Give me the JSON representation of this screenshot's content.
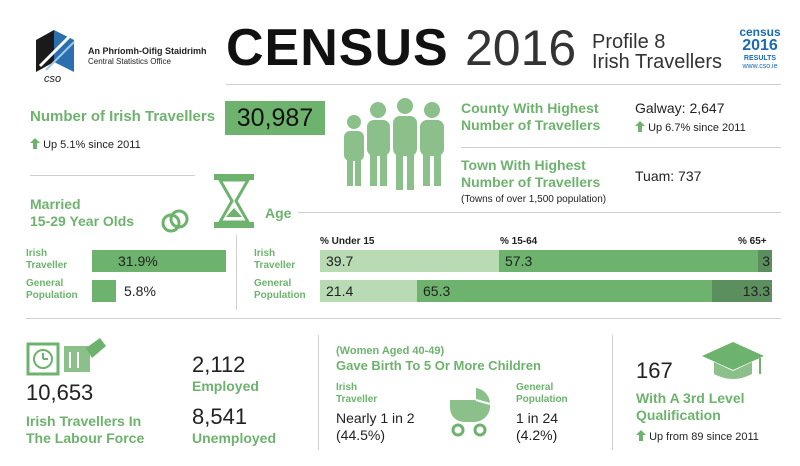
{
  "header": {
    "org_irish": "An Phríomh-Oifig Staidrimh",
    "org_english": "Central Statistics Office",
    "title_word": "CENSUS",
    "title_year": "2016",
    "profile": "Profile 8",
    "profile_subject": "Irish Travellers",
    "badge_census": "census",
    "badge_year": "2016",
    "badge_results": "RESULTS",
    "badge_url": "www.cso.ie"
  },
  "travellers": {
    "label": "Number of Irish Travellers",
    "value": "30,987",
    "change": "Up 5.1% since 2011"
  },
  "county": {
    "label_line1": "County With Highest",
    "label_line2": "Number of  Travellers",
    "value": "Galway: 2,647",
    "change": "Up 6.7% since 2011"
  },
  "town": {
    "label_line1": "Town With Highest",
    "label_line2": "Number of Travellers",
    "value": "Tuam: 737",
    "note": "(Towns of over 1,500 population)"
  },
  "married": {
    "title_line1": "Married",
    "title_line2": "15-29 Year Olds",
    "rows": [
      {
        "label_line1": "Irish",
        "label_line2": "Traveller",
        "value_label": "31.9%",
        "value": 31.9
      },
      {
        "label_line1": "General",
        "label_line2": "Population",
        "value_label": "5.8%",
        "value": 5.8
      }
    ]
  },
  "age": {
    "title": "Age",
    "headers": [
      "% Under 15",
      "% 15-64",
      "% 65+"
    ],
    "rows": [
      {
        "label_line1": "Irish",
        "label_line2": "Traveller",
        "values": [
          39.7,
          57.3,
          3
        ],
        "labels": [
          "39.7",
          "57.3",
          "3"
        ]
      },
      {
        "label_line1": "General",
        "label_line2": "Population",
        "values": [
          21.4,
          65.3,
          13.3
        ],
        "labels": [
          "21.4",
          "65.3",
          "13.3"
        ]
      }
    ]
  },
  "labour": {
    "value": "10,653",
    "label_line1": "Irish Travellers In",
    "label_line2": "The Labour Force",
    "employed_value": "2,112",
    "employed_label": "Employed",
    "unemployed_value": "8,541",
    "unemployed_label": "Unemployed"
  },
  "births": {
    "title_line1": "(Women Aged 40-49)",
    "title_line2": "Gave Birth To 5 Or More Children",
    "traveller_label_line1": "Irish",
    "traveller_label_line2": "Traveller",
    "traveller_value_line1": "Nearly 1 in 2",
    "traveller_value_line2": "(44.5%)",
    "general_label_line1": "General",
    "general_label_line2": "Population",
    "general_value_line1": "1 in 24",
    "general_value_line2": "(4.2%)"
  },
  "education": {
    "value": "167",
    "label_line1": "With A 3rd Level",
    "label_line2": "Qualification",
    "change": "Up from 89 since 2011"
  },
  "colors": {
    "green": "#6db36e",
    "light_green": "#b8dbb4",
    "dark_green": "#5b8f5e",
    "blue": "#1a6bb0"
  }
}
